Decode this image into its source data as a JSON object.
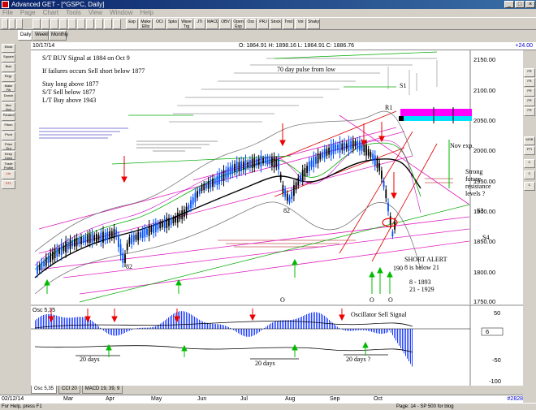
{
  "window": {
    "title": "Advanced GET - [^GSPC, Daily]"
  },
  "menu": [
    "File",
    "Page",
    "Chart",
    "Tools",
    "View",
    "Window",
    "Help"
  ],
  "toolbar": {
    "studies": [
      "Esp",
      "Make Ellis",
      "OCI",
      "Spks",
      "Wave Trg",
      "JTI",
      "MACD",
      "OBV",
      "Open Esp",
      "Osc",
      "PRJ",
      "Stock",
      "Trnd",
      "Vol",
      "Shaky"
    ],
    "periods": [
      "Daily",
      "Weekly",
      "Monthly"
    ]
  },
  "header": {
    "date": "10/17/14",
    "ohlc": "O: 1864.91   H: 1898.16   L: 1864.91   C: 1886.76",
    "change": "+24.00"
  },
  "left_tools": [
    "Elliott",
    "Square",
    "Bias",
    "Regr.",
    "Make Fib",
    "Donch",
    "Mov Avg",
    "Parabol",
    "Fibon",
    "Pivot",
    "Price Out",
    "Keep Lines",
    "Trade Profile",
    "Lin",
    "XTL"
  ],
  "right_tools": [
    "FR",
    "FR",
    "FR",
    "FR",
    "FR",
    "MOB",
    "PTI",
    "C",
    "C",
    "C"
  ],
  "annotations": {
    "line1": "S/T BUY Signal at 1884 on Oct 9",
    "line2": "If failures occurs Sell short below 1877",
    "line3": "Stay long above 1877",
    "line4": "S/T Sell below 1877",
    "line5": "L/T Buy above 1943",
    "pulse": "70 day pulse from low",
    "s1": "S1",
    "r1": "R1",
    "s3": "S3",
    "s4": "S4",
    "nov": "Nov exp.",
    "strong1": "Strong",
    "strong2": "future",
    "strong3": "resistance",
    "strong4": "levels ?",
    "short1": "SHORT ALERT",
    "short2": "8 is below 21",
    "short3": "8   - 1893",
    "short4": "21 - 1929",
    "low82a": "82",
    "low82b": "82",
    "low190": "190",
    "o1": "O",
    "o2": "O",
    "o3": "O",
    "osc_title": "Osc 5,35",
    "osc_sell": "Oscillator Sell Signal",
    "days1": "20 days",
    "days2": "20 days",
    "days3": "20 days ?"
  },
  "price_axis": [
    "2150.00",
    "2100.00",
    "2050.00",
    "2000.00",
    "1950.00",
    "1900.00",
    "1850.00",
    "1800.00",
    "1750.00"
  ],
  "osc_axis": [
    "50",
    "6",
    "-50",
    "-100"
  ],
  "tabs": [
    "Osc 5,35",
    "CCI 20",
    "MACD 19, 39, 9"
  ],
  "x_axis": {
    "start": "02/12/14",
    "months": [
      "Mar",
      "Apr",
      "May",
      "Jun",
      "Jul",
      "Aug",
      "Sep",
      "Oct"
    ],
    "bar_count": "#2828"
  },
  "status": {
    "left": "For Help, press F1",
    "right": "Page: 14 - SP 500 for blog"
  }
}
